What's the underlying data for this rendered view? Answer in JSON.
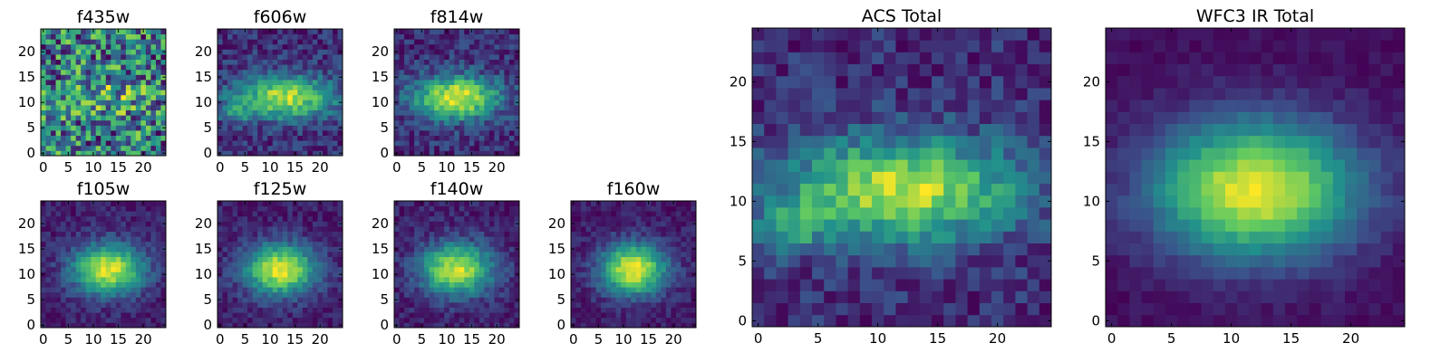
{
  "chart_data": [
    {
      "type": "heatmap",
      "title": "f435w",
      "colormap": "viridis",
      "xticks": [
        0,
        5,
        10,
        15,
        20
      ],
      "yticks": [
        0,
        5,
        10,
        15,
        20
      ],
      "xlim": [
        0,
        25
      ],
      "ylim": [
        0,
        25
      ],
      "grid_size": 25,
      "model": {
        "peak": [
          12,
          11
        ],
        "sigma": [
          6,
          3
        ],
        "amplitude": 0.1,
        "base": 0.7,
        "noise": 0.38,
        "secondary": null
      }
    },
    {
      "type": "heatmap",
      "title": "f606w",
      "colormap": "viridis",
      "xticks": [
        0,
        5,
        10,
        15,
        20
      ],
      "yticks": [
        0,
        5,
        10,
        15,
        20
      ],
      "xlim": [
        0,
        25
      ],
      "ylim": [
        0,
        25
      ],
      "grid_size": 25,
      "model": {
        "peak": [
          13,
          11
        ],
        "sigma": [
          7,
          3
        ],
        "amplitude": 0.62,
        "base": 0.28,
        "noise": 0.24,
        "secondary": [
          3,
          8
        ]
      }
    },
    {
      "type": "heatmap",
      "title": "f814w",
      "colormap": "viridis",
      "xticks": [
        0,
        5,
        10,
        15,
        20
      ],
      "yticks": [
        0,
        5,
        10,
        15,
        20
      ],
      "xlim": [
        0,
        25
      ],
      "ylim": [
        0,
        25
      ],
      "grid_size": 25,
      "model": {
        "peak": [
          12,
          11
        ],
        "sigma": [
          6,
          3
        ],
        "amplitude": 0.65,
        "base": 0.25,
        "noise": 0.22,
        "secondary": null
      }
    },
    {
      "type": "heatmap",
      "title": "f105w",
      "colormap": "viridis",
      "xticks": [
        0,
        5,
        10,
        15,
        20
      ],
      "yticks": [
        0,
        5,
        10,
        15,
        20
      ],
      "xlim": [
        0,
        25
      ],
      "ylim": [
        0,
        25
      ],
      "grid_size": 25,
      "model": {
        "peak": [
          13,
          11
        ],
        "sigma": [
          5,
          3.5
        ],
        "amplitude": 0.75,
        "base": 0.15,
        "noise": 0.16,
        "secondary": null
      }
    },
    {
      "type": "heatmap",
      "title": "f125w",
      "colormap": "viridis",
      "xticks": [
        0,
        5,
        10,
        15,
        20
      ],
      "yticks": [
        0,
        5,
        10,
        15,
        20
      ],
      "xlim": [
        0,
        25
      ],
      "ylim": [
        0,
        25
      ],
      "grid_size": 25,
      "model": {
        "peak": [
          12,
          11
        ],
        "sigma": [
          5,
          3.5
        ],
        "amplitude": 0.75,
        "base": 0.15,
        "noise": 0.16,
        "secondary": null
      }
    },
    {
      "type": "heatmap",
      "title": "f140w",
      "colormap": "viridis",
      "xticks": [
        0,
        5,
        10,
        15,
        20
      ],
      "yticks": [
        0,
        5,
        10,
        15,
        20
      ],
      "xlim": [
        0,
        25
      ],
      "ylim": [
        0,
        25
      ],
      "grid_size": 25,
      "model": {
        "peak": [
          12,
          11
        ],
        "sigma": [
          5,
          3.5
        ],
        "amplitude": 0.75,
        "base": 0.15,
        "noise": 0.18,
        "secondary": null
      }
    },
    {
      "type": "heatmap",
      "title": "f160w",
      "colormap": "viridis",
      "xticks": [
        0,
        5,
        10,
        15,
        20
      ],
      "yticks": [
        0,
        5,
        10,
        15,
        20
      ],
      "xlim": [
        0,
        25
      ],
      "ylim": [
        0,
        25
      ],
      "grid_size": 25,
      "model": {
        "peak": [
          12,
          11
        ],
        "sigma": [
          4.5,
          3.5
        ],
        "amplitude": 0.78,
        "base": 0.14,
        "noise": 0.15,
        "secondary": null
      }
    },
    {
      "type": "heatmap",
      "title": "ACS Total",
      "colormap": "viridis",
      "xticks": [
        0,
        5,
        10,
        15,
        20
      ],
      "yticks": [
        0,
        5,
        10,
        15,
        20
      ],
      "xlim": [
        0,
        25
      ],
      "ylim": [
        0,
        25
      ],
      "grid_size": 25,
      "model": {
        "peak": [
          12,
          11
        ],
        "sigma": [
          7,
          3
        ],
        "amplitude": 0.6,
        "base": 0.3,
        "noise": 0.2,
        "secondary": [
          3,
          8
        ]
      }
    },
    {
      "type": "heatmap",
      "title": "WFC3 IR Total",
      "colormap": "viridis",
      "xticks": [
        0,
        5,
        10,
        15,
        20
      ],
      "yticks": [
        0,
        5,
        10,
        15,
        20
      ],
      "xlim": [
        0,
        25
      ],
      "ylim": [
        0,
        25
      ],
      "grid_size": 25,
      "model": {
        "peak": [
          12,
          11
        ],
        "sigma": [
          6,
          4
        ],
        "amplitude": 0.82,
        "base": 0.12,
        "noise": 0.08,
        "secondary": null
      }
    }
  ]
}
